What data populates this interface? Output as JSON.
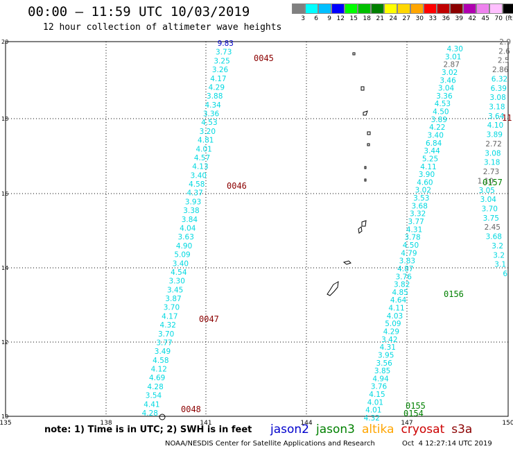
{
  "header": {
    "title": "00:00 – 11:59 UTC 10/03/2019",
    "subtitle": "12 hour collection of altimeter wave heights"
  },
  "colorbar": {
    "unit": "(ft)",
    "labels": [
      "3",
      "6",
      "9",
      "12",
      "15",
      "18",
      "21",
      "24",
      "27",
      "30",
      "33",
      "36",
      "39",
      "42",
      "45",
      "70"
    ],
    "colors": [
      "#808080",
      "#00ffff",
      "#00bfff",
      "#0000ff",
      "#00ff00",
      "#00c000",
      "#008000",
      "#ffff00",
      "#ffd700",
      "#ffa500",
      "#ff0000",
      "#c00000",
      "#8b0000",
      "#b000b0",
      "#ee82ee",
      "#ffc0ff",
      "#000000"
    ]
  },
  "colors": {
    "track": "#00d8e0",
    "high": "#0000cc",
    "gray": "#666666",
    "time_jason3": "#008000",
    "time_cryosat": "#8b0000"
  },
  "axes": {
    "lon_ticks": [
      "135",
      "138",
      "141",
      "144",
      "147",
      "150"
    ],
    "lat_ticks": [
      "10",
      "12",
      "14",
      "16",
      "18",
      "20"
    ]
  },
  "tracks": [
    {
      "name": "west",
      "labels": [
        "9.83",
        "3.73",
        "3.25",
        "3.26",
        "4.17",
        "4.29",
        "3.88",
        "4.34",
        "3.36",
        "4.53",
        "3.20",
        "4.81",
        "4.01",
        "4.57",
        "4.13",
        "3.40",
        "4.58",
        "4.37",
        "3.93",
        "3.38",
        "3.84",
        "4.04",
        "3.63",
        "4.90",
        "5.09",
        "3.40",
        "4.54",
        "3.30",
        "3.45",
        "3.87",
        "3.70",
        "4.17",
        "4.32",
        "3.70",
        "3.77",
        "3.49",
        "4.58",
        "4.12",
        "4.69",
        "4.28",
        "3.54",
        "4.41",
        "4.28"
      ]
    },
    {
      "name": "east-a",
      "labels": [
        "4.30",
        "3.01",
        "2.87",
        "3.02",
        "3.46",
        "3.04",
        "3.36",
        "4.53",
        "4.50",
        "3.89",
        "4.22",
        "3.40",
        "6.84",
        "3.44",
        "5.25",
        "4.11",
        "3.90",
        "4.60",
        "3.02",
        "3.53",
        "3.68",
        "3.32",
        "3.77",
        "4.31",
        "3.78",
        "4.50",
        "4.79",
        "3.83",
        "4.87",
        "3.76",
        "3.82",
        "4.85",
        "4.64",
        "4.11",
        "4.03",
        "5.09",
        "4.29",
        "3.42",
        "4.31",
        "3.95",
        "3.56",
        "3.85",
        "4.94",
        "3.76",
        "4.15",
        "4.01",
        "4.01",
        "4.32"
      ]
    },
    {
      "name": "east-b",
      "labels": [
        "2.9",
        "2.6",
        "2.5",
        "2.86",
        "6.32",
        "6.39",
        "3.08",
        "3.18",
        "3.64",
        "4.10",
        "3.89",
        "2.72",
        "3.08",
        "3.18",
        "2.73",
        "1.10",
        "3.05",
        "3.04",
        "3.70",
        "3.75",
        "2.45",
        "3.68",
        "3.2",
        "3.2",
        "3.1",
        "6"
      ]
    }
  ],
  "times": [
    {
      "label": "0045",
      "sat": "cryosat"
    },
    {
      "label": "0046",
      "sat": "cryosat"
    },
    {
      "label": "0047",
      "sat": "cryosat"
    },
    {
      "label": "0048",
      "sat": "cryosat"
    },
    {
      "label": "0157",
      "sat": "jason3"
    },
    {
      "label": "0156",
      "sat": "jason3"
    },
    {
      "label": "0155",
      "sat": "jason3"
    },
    {
      "label": "0154",
      "sat": "jason3"
    },
    {
      "label": "11",
      "sat": "cryosat"
    }
  ],
  "note": "note: 1) Time is in UTC; 2) SWH is in feet",
  "legend": [
    {
      "label": "jason2",
      "color": "#0000cc"
    },
    {
      "label": "jason3",
      "color": "#008000"
    },
    {
      "label": "altika",
      "color": "#ffa500"
    },
    {
      "label": "cryosat",
      "color": "#cc0000"
    },
    {
      "label": "s3a",
      "color": "#8b0000"
    }
  ],
  "footer": {
    "credit": "NOAA/NESDIS Center for Satellite Applications and Research",
    "timestamp": "Oct  4 12:27:14 UTC 2019"
  }
}
